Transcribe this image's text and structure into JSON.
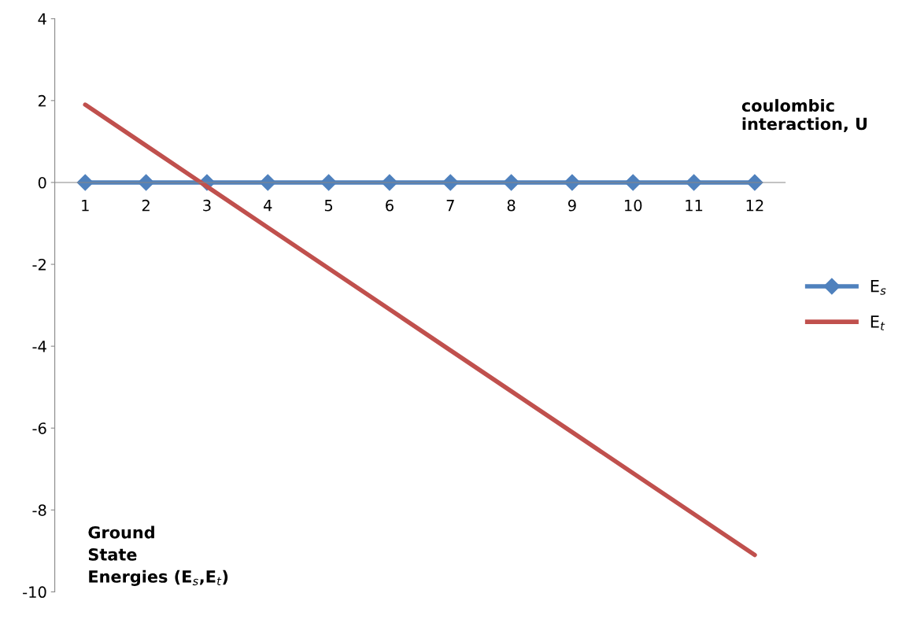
{
  "chart_data": {
    "type": "line",
    "xlabel": "coulombic interaction, U",
    "ylabel": "Ground State Energies (E$_{s}$,E$_{t}$)",
    "categories": [
      "1",
      "2",
      "3",
      "4",
      "5",
      "6",
      "7",
      "8",
      "9",
      "10",
      "11",
      "12"
    ],
    "series": [
      {
        "name": "E$_{s}$",
        "color": "#4f81bd",
        "marker": "diamond",
        "values": [
          0,
          0,
          0,
          0,
          0,
          0,
          0,
          0,
          0,
          0,
          0,
          0
        ]
      },
      {
        "name": "E$_{t}$",
        "color": "#c0504d",
        "marker": "none",
        "values": [
          1.9,
          0.9,
          -0.1,
          -1.1,
          -2.1,
          -3.1,
          -4.1,
          -5.1,
          -6.1,
          -7.1,
          -8.1,
          -9.1
        ]
      }
    ],
    "ylim": [
      -10,
      4
    ],
    "yticks": [
      -10,
      -8,
      -6,
      -4,
      -2,
      0,
      2,
      4
    ],
    "legend": "right",
    "grid": false
  }
}
